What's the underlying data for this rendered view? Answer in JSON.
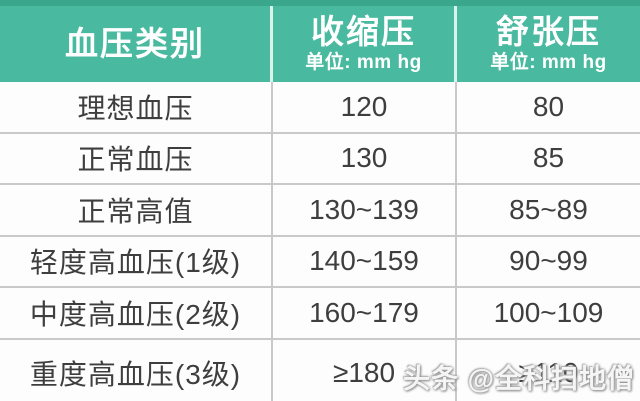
{
  "table": {
    "header": {
      "category_label": "血压类别",
      "systolic": {
        "title": "收缩压",
        "subtitle": "单位: mm hg"
      },
      "diastolic": {
        "title": "舒张压",
        "subtitle": "单位: mm hg"
      }
    },
    "rows": [
      {
        "category": "理想血压",
        "systolic": "120",
        "diastolic": "80"
      },
      {
        "category": "正常血压",
        "systolic": "130",
        "diastolic": "85"
      },
      {
        "category": "正常高值",
        "systolic": "130~139",
        "diastolic": "85~89"
      },
      {
        "category": "轻度高血压(1级)",
        "systolic": "140~159",
        "diastolic": "90~99"
      },
      {
        "category": "中度高血压(2级)",
        "systolic": "160~179",
        "diastolic": "100~109"
      },
      {
        "category": "重度高血压(3级)",
        "systolic": "≥180",
        "diastolic": "≥110"
      }
    ]
  },
  "watermark": "头条 @全科扫地僧",
  "colors": {
    "header_bg": "#49b9a0",
    "header_top_strip": "#3aa68c",
    "header_text": "#ffffff",
    "body_text": "#3e3e3e",
    "divider": "#c9c9c9",
    "watermark_text": "#f5f5f5"
  }
}
